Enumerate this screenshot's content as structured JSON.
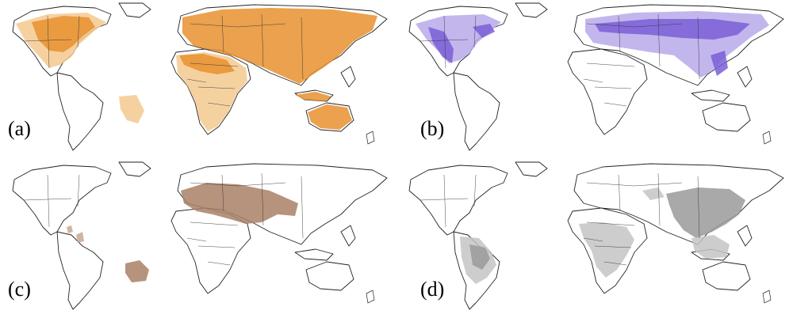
{
  "panels": [
    {
      "id": "a",
      "label": "(a)",
      "color": "#e8902e",
      "light": "#f4c98f"
    },
    {
      "id": "b",
      "label": "(b)",
      "color": "#7a5fd6",
      "light": "#b9a9ea"
    },
    {
      "id": "c",
      "label": "(c)",
      "color": "#a98066",
      "light": "#c9a792"
    },
    {
      "id": "d",
      "label": "(d)",
      "color": "#9a9a9a",
      "light": "#c4c4c4"
    }
  ]
}
